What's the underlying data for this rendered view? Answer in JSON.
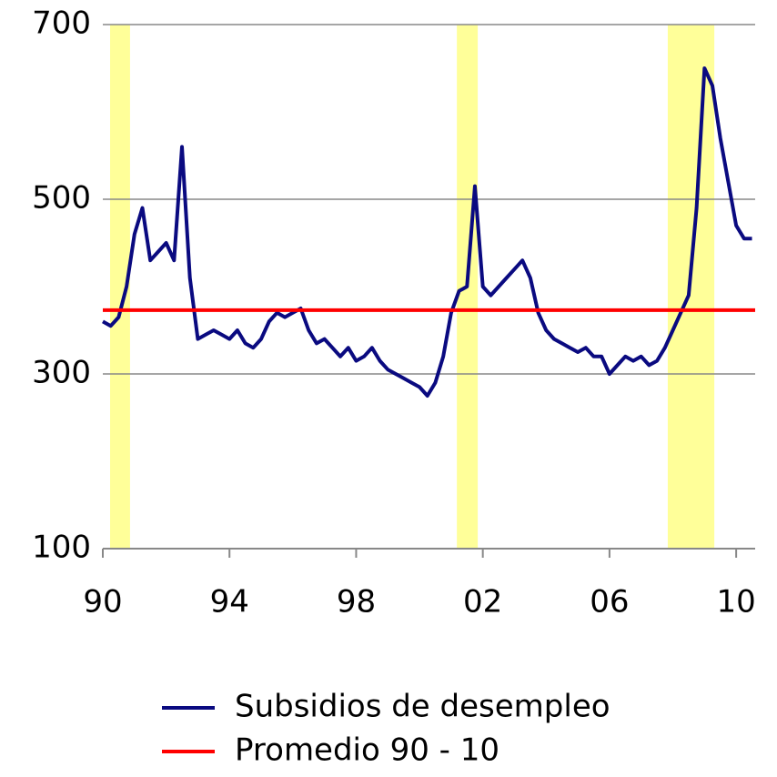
{
  "chart_data": {
    "type": "line",
    "x": [
      1990,
      1990.25,
      1990.5,
      1990.75,
      1991,
      1991.25,
      1991.5,
      1991.75,
      1992,
      1992.25,
      1992.5,
      1992.75,
      1993,
      1993.25,
      1993.5,
      1993.75,
      1994,
      1994.25,
      1994.5,
      1994.75,
      1995,
      1995.25,
      1995.5,
      1995.75,
      1996,
      1996.25,
      1996.5,
      1996.75,
      1997,
      1997.25,
      1997.5,
      1997.75,
      1998,
      1998.25,
      1998.5,
      1998.75,
      1999,
      1999.25,
      1999.5,
      1999.75,
      2000,
      2000.25,
      2000.5,
      2000.75,
      2001,
      2001.25,
      2001.5,
      2001.75,
      2002,
      2002.25,
      2002.5,
      2002.75,
      2003,
      2003.25,
      2003.5,
      2003.75,
      2004,
      2004.25,
      2004.5,
      2004.75,
      2005,
      2005.25,
      2005.5,
      2005.75,
      2006,
      2006.25,
      2006.5,
      2006.75,
      2007,
      2007.25,
      2007.5,
      2007.75,
      2008,
      2008.25,
      2008.5,
      2008.75,
      2009,
      2009.25,
      2009.5,
      2009.75,
      2010,
      2010.25,
      2010.5
    ],
    "series": [
      {
        "name": "Subsidios de desempleo",
        "color": "#0a0a80",
        "values": [
          360,
          355,
          365,
          400,
          460,
          490,
          430,
          440,
          450,
          430,
          560,
          410,
          340,
          345,
          350,
          345,
          340,
          350,
          335,
          330,
          340,
          360,
          370,
          365,
          370,
          375,
          350,
          335,
          340,
          330,
          320,
          330,
          315,
          320,
          330,
          315,
          305,
          300,
          295,
          290,
          285,
          275,
          290,
          320,
          370,
          395,
          400,
          515,
          400,
          390,
          400,
          410,
          420,
          430,
          410,
          370,
          350,
          340,
          335,
          330,
          325,
          330,
          320,
          320,
          300,
          310,
          320,
          315,
          320,
          310,
          315,
          330,
          350,
          370,
          390,
          490,
          650,
          630,
          570,
          520,
          470,
          455,
          455
        ]
      },
      {
        "name": "Promedio 90 - 10",
        "color": "#ff0000",
        "x": [
          1990,
          2010.6
        ],
        "values": [
          373,
          373
        ]
      }
    ],
    "shaded": [
      [
        1990.23,
        1990.86
      ],
      [
        2001.18,
        2001.84
      ],
      [
        2007.84,
        2009.31
      ]
    ],
    "shade_color": "#ffff99",
    "xlim": [
      1990,
      2010.6
    ],
    "ylim": [
      100,
      700
    ],
    "xticks": [
      {
        "value": 1990,
        "label": "90"
      },
      {
        "value": 1994,
        "label": "94"
      },
      {
        "value": 1998,
        "label": "98"
      },
      {
        "value": 2002,
        "label": "02"
      },
      {
        "value": 2006,
        "label": "06"
      },
      {
        "value": 2010,
        "label": "10"
      }
    ],
    "yticks": [
      100,
      300,
      500,
      700
    ],
    "grid": true
  }
}
